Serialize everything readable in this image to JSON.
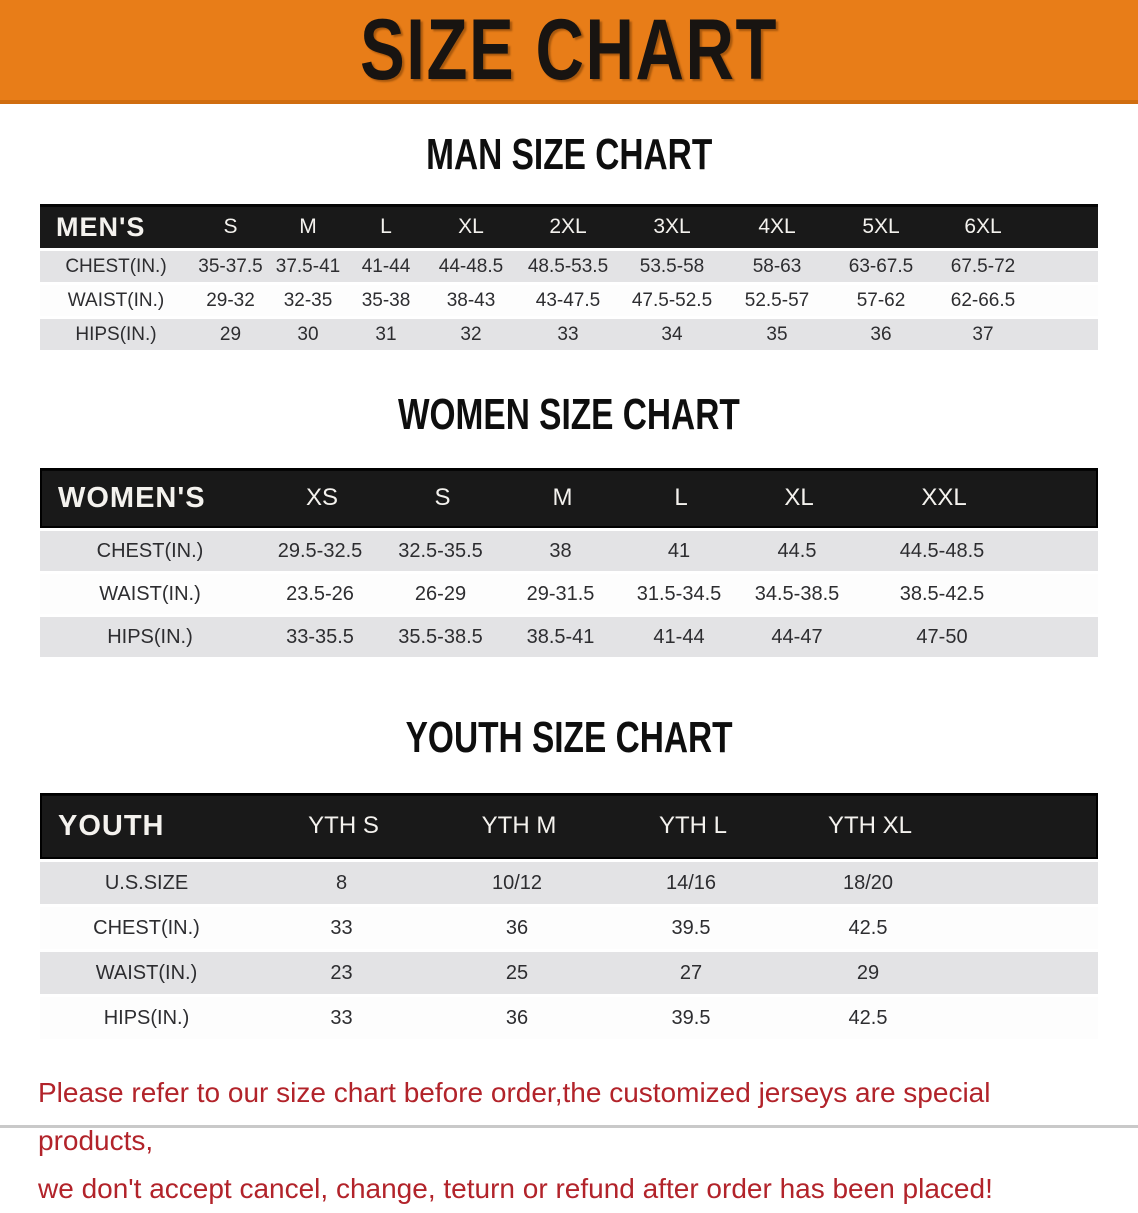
{
  "banner": {
    "title": "SIZE CHART",
    "bg_color": "#e87d18"
  },
  "colors": {
    "header_bar": "#191919",
    "row_gray": "#e3e3e5",
    "row_white": "#fdfdfd",
    "footer_red": "#b2232a"
  },
  "sections": [
    {
      "heading": "MAN SIZE CHART",
      "table": {
        "header_label": "MEN'S",
        "columns": [
          "S",
          "M",
          "L",
          "XL",
          "2XL",
          "3XL",
          "4XL",
          "5XL",
          "6XL"
        ],
        "rows": [
          {
            "label": "CHEST(IN.)",
            "values": [
              "35-37.5",
              "37.5-41",
              "41-44",
              "44-48.5",
              "48.5-53.5",
              "53.5-58",
              "58-63",
              "63-67.5",
              "67.5-72"
            ]
          },
          {
            "label": "WAIST(IN.)",
            "values": [
              "29-32",
              "32-35",
              "35-38",
              "38-43",
              "43-47.5",
              "47.5-52.5",
              "52.5-57",
              "57-62",
              "62-66.5"
            ]
          },
          {
            "label": "HIPS(IN.)",
            "values": [
              "29",
              "30",
              "31",
              "32",
              "33",
              "34",
              "35",
              "36",
              "37"
            ]
          }
        ]
      }
    },
    {
      "heading": "WOMEN SIZE CHART",
      "table": {
        "header_label": "WOMEN'S",
        "columns": [
          "XS",
          "S",
          "M",
          "L",
          "XL",
          "XXL"
        ],
        "rows": [
          {
            "label": "CHEST(IN.)",
            "values": [
              "29.5-32.5",
              "32.5-35.5",
              "38",
              "41",
              "44.5",
              "44.5-48.5"
            ]
          },
          {
            "label": "WAIST(IN.)",
            "values": [
              "23.5-26",
              "26-29",
              "29-31.5",
              "31.5-34.5",
              "34.5-38.5",
              "38.5-42.5"
            ]
          },
          {
            "label": "HIPS(IN.)",
            "values": [
              "33-35.5",
              "35.5-38.5",
              "38.5-41",
              "41-44",
              "44-47",
              "47-50"
            ]
          }
        ]
      }
    },
    {
      "heading": "YOUTH SIZE CHART",
      "table": {
        "header_label": "YOUTH",
        "columns": [
          "YTH S",
          "YTH M",
          "YTH L",
          "YTH XL"
        ],
        "rows": [
          {
            "label": "U.S.SIZE",
            "values": [
              "8",
              "10/12",
              "14/16",
              "18/20"
            ]
          },
          {
            "label": "CHEST(IN.)",
            "values": [
              "33",
              "36",
              "39.5",
              "42.5"
            ]
          },
          {
            "label": "WAIST(IN.)",
            "values": [
              "23",
              "25",
              "27",
              "29"
            ]
          },
          {
            "label": "HIPS(IN.)",
            "values": [
              "33",
              "36",
              "39.5",
              "42.5"
            ]
          }
        ]
      }
    }
  ],
  "footer": {
    "line1": "Please refer to our size chart before order,the customized jerseys are special products,",
    "line2": "we don't accept cancel, change, teturn or refund after order has been placed!"
  }
}
